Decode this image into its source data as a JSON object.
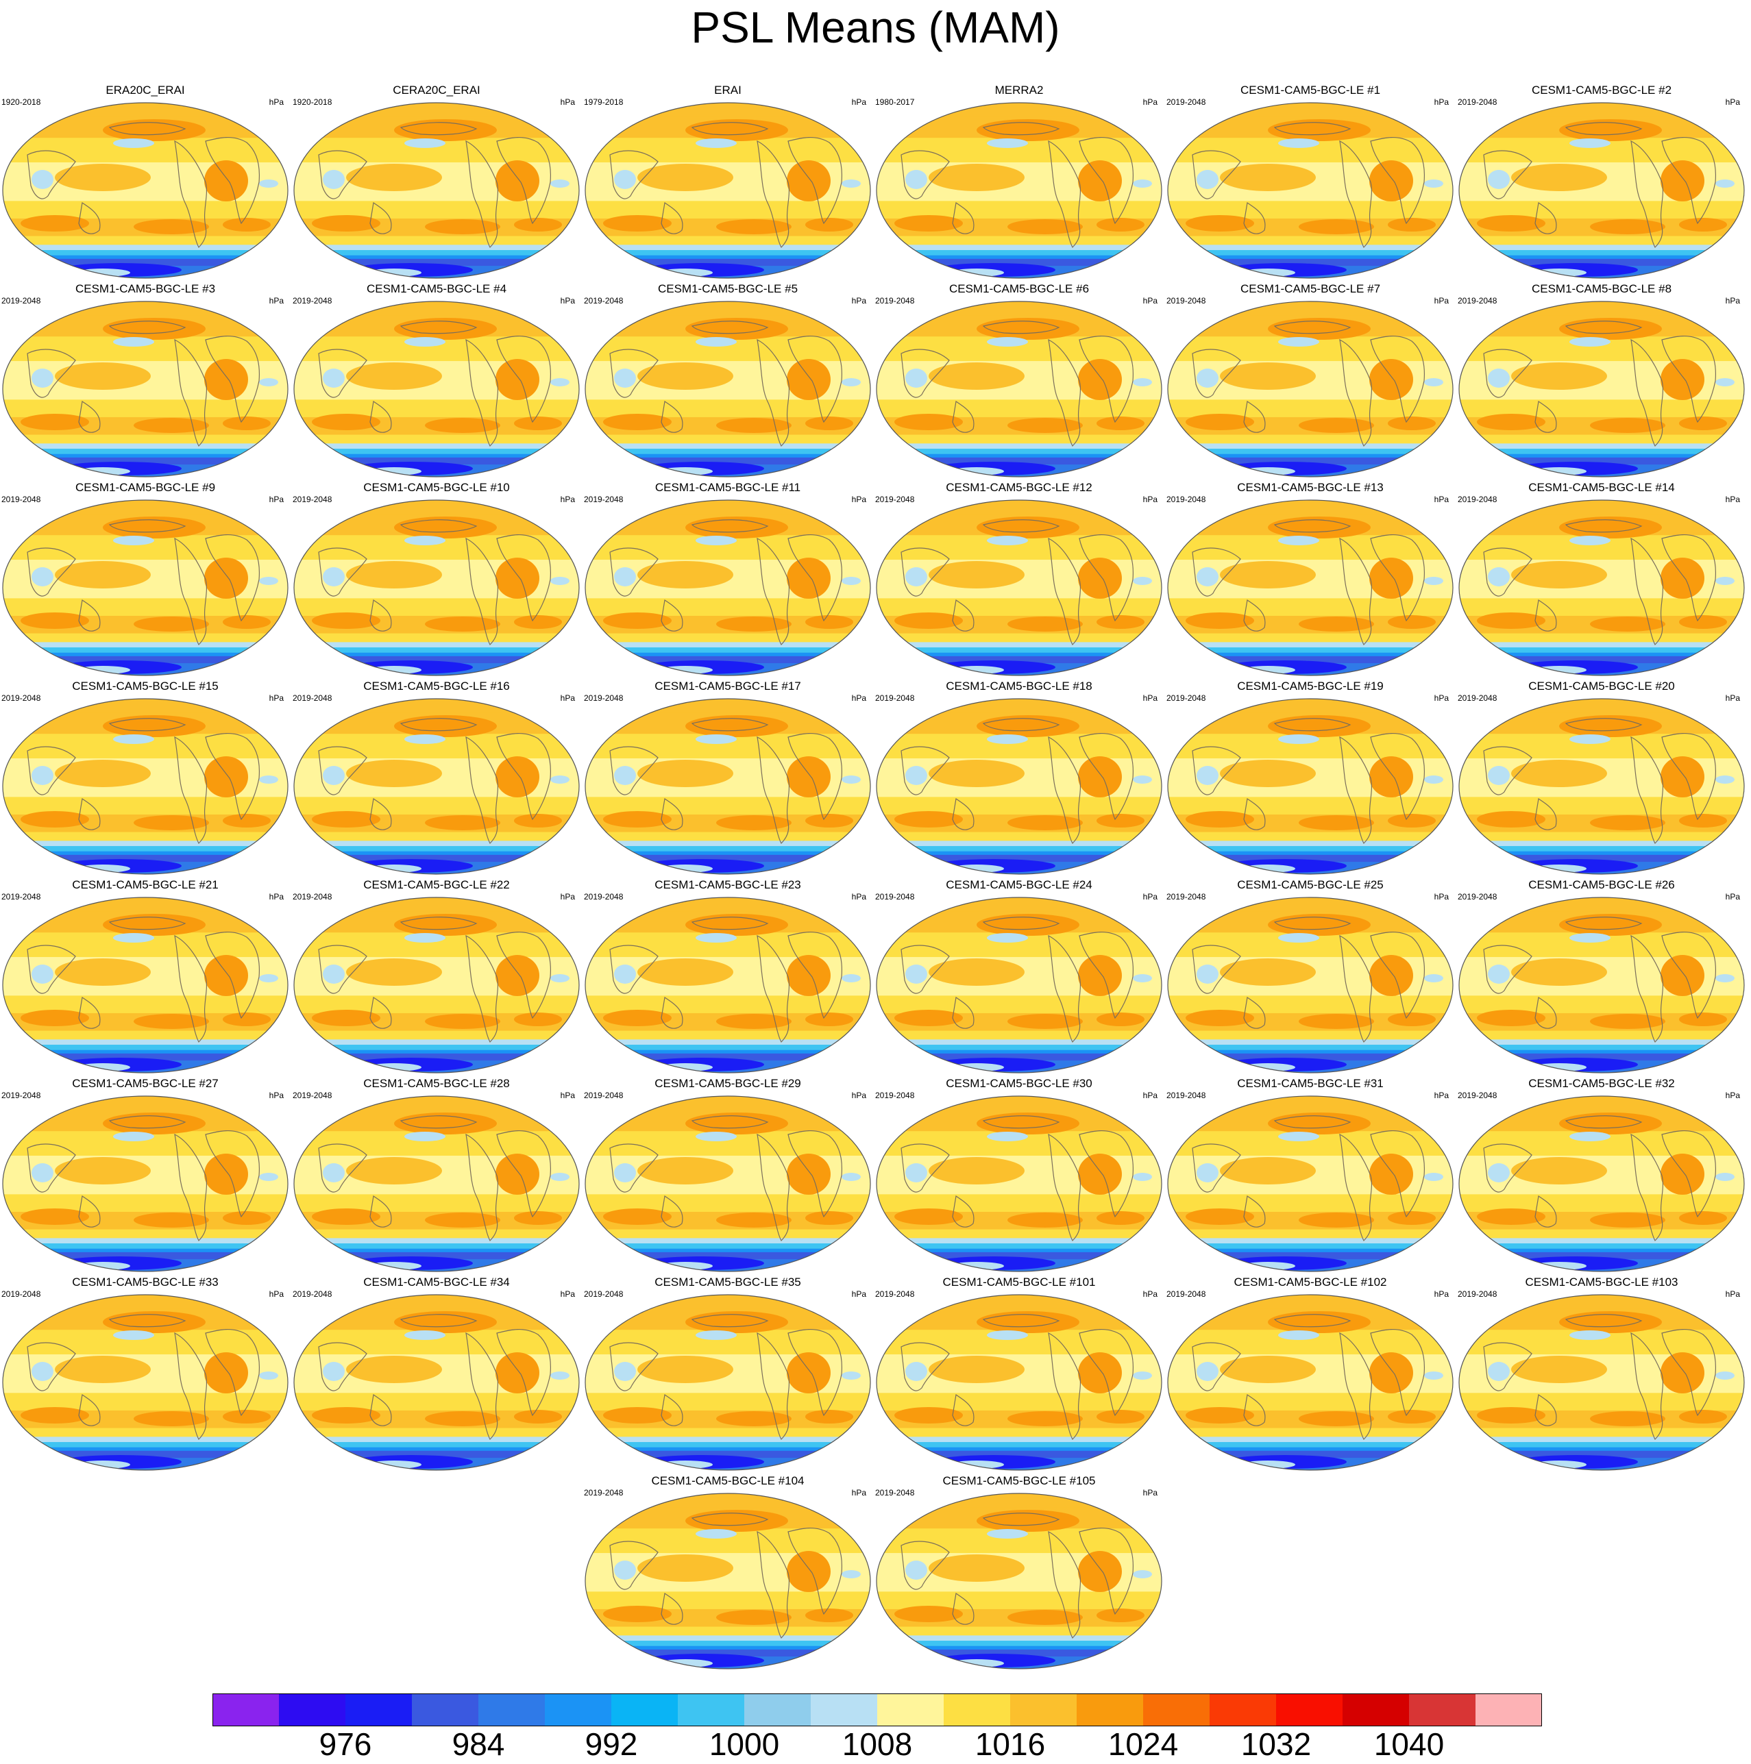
{
  "title": "PSL Means (MAM)",
  "panels": [
    {
      "name": "ERA20C_ERAI",
      "period": "1920-2018",
      "units": "hPa"
    },
    {
      "name": "CERA20C_ERAI",
      "period": "1920-2018",
      "units": "hPa"
    },
    {
      "name": "ERAI",
      "period": "1979-2018",
      "units": "hPa"
    },
    {
      "name": "MERRA2",
      "period": "1980-2017",
      "units": "hPa"
    },
    {
      "name": "CESM1-CAM5-BGC-LE #1",
      "period": "2019-2048",
      "units": "hPa"
    },
    {
      "name": "CESM1-CAM5-BGC-LE #2",
      "period": "2019-2048",
      "units": "hPa"
    },
    {
      "name": "CESM1-CAM5-BGC-LE #3",
      "period": "2019-2048",
      "units": "hPa"
    },
    {
      "name": "CESM1-CAM5-BGC-LE #4",
      "period": "2019-2048",
      "units": "hPa"
    },
    {
      "name": "CESM1-CAM5-BGC-LE #5",
      "period": "2019-2048",
      "units": "hPa"
    },
    {
      "name": "CESM1-CAM5-BGC-LE #6",
      "period": "2019-2048",
      "units": "hPa"
    },
    {
      "name": "CESM1-CAM5-BGC-LE #7",
      "period": "2019-2048",
      "units": "hPa"
    },
    {
      "name": "CESM1-CAM5-BGC-LE #8",
      "period": "2019-2048",
      "units": "hPa"
    },
    {
      "name": "CESM1-CAM5-BGC-LE #9",
      "period": "2019-2048",
      "units": "hPa"
    },
    {
      "name": "CESM1-CAM5-BGC-LE #10",
      "period": "2019-2048",
      "units": "hPa"
    },
    {
      "name": "CESM1-CAM5-BGC-LE #11",
      "period": "2019-2048",
      "units": "hPa"
    },
    {
      "name": "CESM1-CAM5-BGC-LE #12",
      "period": "2019-2048",
      "units": "hPa"
    },
    {
      "name": "CESM1-CAM5-BGC-LE #13",
      "period": "2019-2048",
      "units": "hPa"
    },
    {
      "name": "CESM1-CAM5-BGC-LE #14",
      "period": "2019-2048",
      "units": "hPa"
    },
    {
      "name": "CESM1-CAM5-BGC-LE #15",
      "period": "2019-2048",
      "units": "hPa"
    },
    {
      "name": "CESM1-CAM5-BGC-LE #16",
      "period": "2019-2048",
      "units": "hPa"
    },
    {
      "name": "CESM1-CAM5-BGC-LE #17",
      "period": "2019-2048",
      "units": "hPa"
    },
    {
      "name": "CESM1-CAM5-BGC-LE #18",
      "period": "2019-2048",
      "units": "hPa"
    },
    {
      "name": "CESM1-CAM5-BGC-LE #19",
      "period": "2019-2048",
      "units": "hPa"
    },
    {
      "name": "CESM1-CAM5-BGC-LE #20",
      "period": "2019-2048",
      "units": "hPa"
    },
    {
      "name": "CESM1-CAM5-BGC-LE #21",
      "period": "2019-2048",
      "units": "hPa"
    },
    {
      "name": "CESM1-CAM5-BGC-LE #22",
      "period": "2019-2048",
      "units": "hPa"
    },
    {
      "name": "CESM1-CAM5-BGC-LE #23",
      "period": "2019-2048",
      "units": "hPa"
    },
    {
      "name": "CESM1-CAM5-BGC-LE #24",
      "period": "2019-2048",
      "units": "hPa"
    },
    {
      "name": "CESM1-CAM5-BGC-LE #25",
      "period": "2019-2048",
      "units": "hPa"
    },
    {
      "name": "CESM1-CAM5-BGC-LE #26",
      "period": "2019-2048",
      "units": "hPa"
    },
    {
      "name": "CESM1-CAM5-BGC-LE #27",
      "period": "2019-2048",
      "units": "hPa"
    },
    {
      "name": "CESM1-CAM5-BGC-LE #28",
      "period": "2019-2048",
      "units": "hPa"
    },
    {
      "name": "CESM1-CAM5-BGC-LE #29",
      "period": "2019-2048",
      "units": "hPa"
    },
    {
      "name": "CESM1-CAM5-BGC-LE #30",
      "period": "2019-2048",
      "units": "hPa"
    },
    {
      "name": "CESM1-CAM5-BGC-LE #31",
      "period": "2019-2048",
      "units": "hPa"
    },
    {
      "name": "CESM1-CAM5-BGC-LE #32",
      "period": "2019-2048",
      "units": "hPa"
    },
    {
      "name": "CESM1-CAM5-BGC-LE #33",
      "period": "2019-2048",
      "units": "hPa"
    },
    {
      "name": "CESM1-CAM5-BGC-LE #34",
      "period": "2019-2048",
      "units": "hPa"
    },
    {
      "name": "CESM1-CAM5-BGC-LE #35",
      "period": "2019-2048",
      "units": "hPa"
    },
    {
      "name": "CESM1-CAM5-BGC-LE #101",
      "period": "2019-2048",
      "units": "hPa"
    },
    {
      "name": "CESM1-CAM5-BGC-LE #102",
      "period": "2019-2048",
      "units": "hPa"
    },
    {
      "name": "CESM1-CAM5-BGC-LE #103",
      "period": "2019-2048",
      "units": "hPa"
    },
    {
      "name": "CESM1-CAM5-BGC-LE #104",
      "period": "2019-2048",
      "units": "hPa"
    },
    {
      "name": "CESM1-CAM5-BGC-LE #105",
      "period": "2019-2048",
      "units": "hPa"
    }
  ],
  "colorbar": {
    "colors": [
      "#8a23ee",
      "#2d0cf2",
      "#1a1df5",
      "#3a59e0",
      "#2f7ae8",
      "#1b93f5",
      "#0ab4f5",
      "#3ec4f2",
      "#8fcdec",
      "#b8e0f4",
      "#fff59b",
      "#fddf43",
      "#fbc02d",
      "#f99b0d",
      "#f96e06",
      "#fa3a05",
      "#f90f00",
      "#d50000",
      "#d83535",
      "#fdb2b5"
    ],
    "labels": [
      "976",
      "984",
      "992",
      "1000",
      "1008",
      "1016",
      "1024",
      "1032",
      "1040"
    ]
  },
  "chart_data": {
    "type": "heatmap",
    "title": "PSL Means (MAM)",
    "units": "hPa",
    "colorbar_levels": [
      976,
      980,
      984,
      988,
      992,
      996,
      1000,
      1004,
      1008,
      1012,
      1016,
      1020,
      1024,
      1028,
      1032,
      1036,
      1040,
      1044
    ],
    "colorbar_tick_labels": [
      976,
      984,
      992,
      1000,
      1008,
      1016,
      1024,
      1032,
      1040
    ],
    "panel_count": 44,
    "layout": "8 rows; 6 panels per row, last row 2 panels centered"
  }
}
